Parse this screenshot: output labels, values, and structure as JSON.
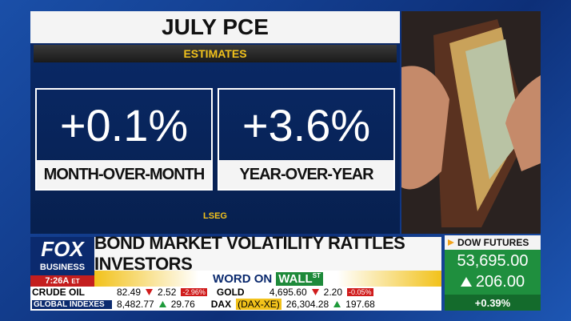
{
  "panel": {
    "title": "JULY PCE",
    "subtitle": "ESTIMATES",
    "stats": [
      {
        "value": "+0.1%",
        "label": "MONTH-OVER-MONTH"
      },
      {
        "value": "+3.6%",
        "label": "YEAR-OVER-YEAR"
      }
    ],
    "source": "LSEG"
  },
  "logo": {
    "top": "FOX",
    "bottom": "BUSINESS"
  },
  "clock": {
    "time": "7:26A",
    "zone": "ET"
  },
  "headline": "BOND MARKET VOLATILITY RATTLES INVESTORS",
  "segment": {
    "prefix": "WORD ON",
    "brand": "WALL",
    "superscript": "ST"
  },
  "ticker": {
    "rows": [
      [
        {
          "name": "CRUDE OIL",
          "price": "82.49",
          "change": "2.52",
          "pct": "-2.96%"
        },
        {
          "name": "GOLD",
          "price": "4,695.60",
          "change": "2.20",
          "pct": "-0.05%"
        }
      ],
      [
        {
          "name": "GLOBAL INDEXES",
          "price": "8,482.77",
          "change": "29.76"
        },
        {
          "name": "DAX",
          "symbol": "(DAX-XE)",
          "price": "26,304.28",
          "change": "197.68"
        }
      ]
    ]
  },
  "dow": {
    "title": "DOW FUTURES",
    "price": "53,695.00",
    "change": "206.00",
    "pct": "+0.39%"
  }
}
